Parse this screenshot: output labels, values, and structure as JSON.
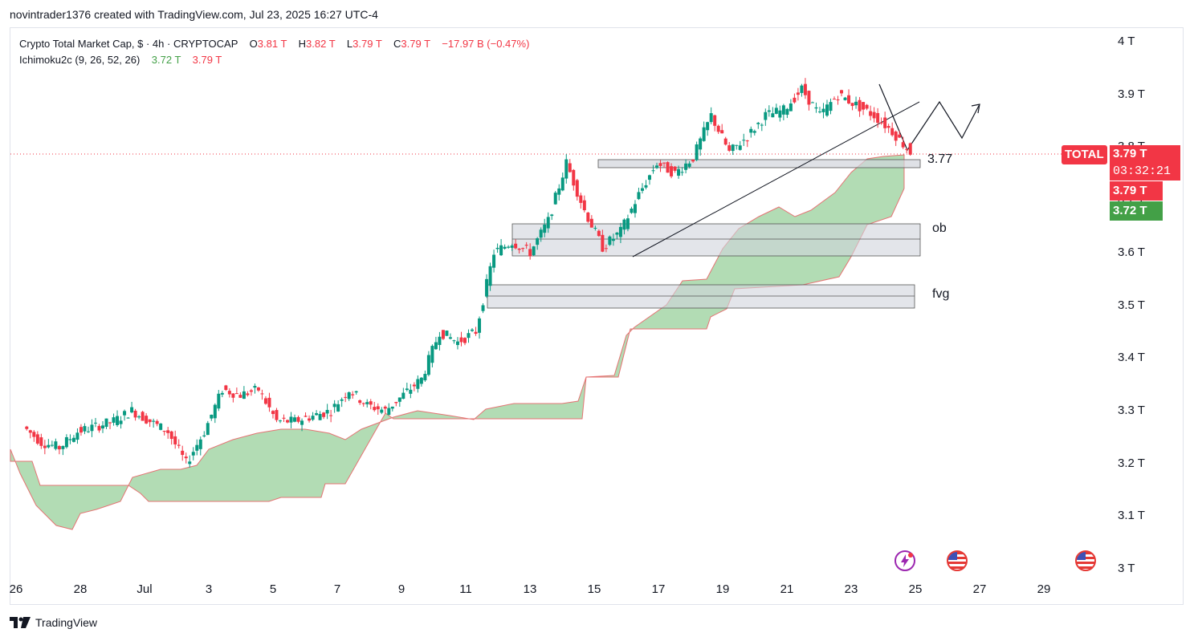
{
  "header": {
    "credit": "novintrader1376 created with TradingView.com, Jul 23, 2025 16:27 UTC-4"
  },
  "legend": {
    "symbol": "Crypto Total Market Cap, $ · 4h · CRYPTOCAP",
    "o_key": "O",
    "o_val": "3.81 T",
    "h_key": "H",
    "h_val": "3.82 T",
    "l_key": "L",
    "l_val": "3.79 T",
    "c_key": "C",
    "c_val": "3.79 T",
    "change": "−17.97 B (−0.47%)",
    "indicator": "Ichimoku2c (9, 26, 52, 26)",
    "ind_v1": "3.72 T",
    "ind_v2": "3.79 T"
  },
  "price_tags": {
    "symbol": "TOTAL",
    "last": "3.79 T",
    "countdown": "03:32:21",
    "ind_red": "3.79 T",
    "ind_green": "3.72 T"
  },
  "annotations": {
    "level": "3.77",
    "ob": "ob",
    "fvg": "fvg"
  },
  "brand": "TradingView",
  "colors": {
    "up": "#089981",
    "down": "#f23645",
    "cloud": "#a5d6a7",
    "zone": "#d1d4dc"
  },
  "icons": [
    "flash-event-icon",
    "us-flag-event-icon",
    "us-flag-event-icon"
  ],
  "chart_data": {
    "type": "line",
    "title": "Crypto Total Market Cap, $ · 4h · CRYPTOCAP",
    "ylim": [
      3.0,
      4.0
    ],
    "y_ticks": [
      "4 T",
      "3.9 T",
      "3.8 T",
      "3.7 T",
      "3.6 T",
      "3.5 T",
      "3.4 T",
      "3.3 T",
      "3.2 T",
      "3.1 T",
      "3 T"
    ],
    "x_ticks": [
      "26",
      "28",
      "Jul",
      "3",
      "5",
      "7",
      "9",
      "11",
      "13",
      "15",
      "17",
      "19",
      "21",
      "23",
      "25",
      "27",
      "29"
    ],
    "close_path": [
      [
        0,
        3.27
      ],
      [
        1,
        3.24
      ],
      [
        2,
        3.23
      ],
      [
        3,
        3.26
      ],
      [
        4,
        3.27
      ],
      [
        5,
        3.28
      ],
      [
        6,
        3.3
      ],
      [
        7,
        3.28
      ],
      [
        8,
        3.26
      ],
      [
        9,
        3.2
      ],
      [
        10,
        3.26
      ],
      [
        11,
        3.34
      ],
      [
        12,
        3.33
      ],
      [
        13,
        3.34
      ],
      [
        14,
        3.28
      ],
      [
        15,
        3.28
      ],
      [
        16,
        3.29
      ],
      [
        17,
        3.3
      ],
      [
        18,
        3.34
      ],
      [
        19,
        3.31
      ],
      [
        20,
        3.3
      ],
      [
        21,
        3.33
      ],
      [
        22,
        3.36
      ],
      [
        23,
        3.45
      ],
      [
        24,
        3.43
      ],
      [
        25,
        3.45
      ],
      [
        26,
        3.6
      ],
      [
        27,
        3.62
      ],
      [
        28,
        3.6
      ],
      [
        29,
        3.66
      ],
      [
        30,
        3.77
      ],
      [
        31,
        3.68
      ],
      [
        32,
        3.61
      ],
      [
        33,
        3.64
      ],
      [
        34,
        3.71
      ],
      [
        35,
        3.77
      ],
      [
        36,
        3.75
      ],
      [
        37,
        3.78
      ],
      [
        38,
        3.86
      ],
      [
        39,
        3.79
      ],
      [
        40,
        3.82
      ],
      [
        41,
        3.86
      ],
      [
        42,
        3.87
      ],
      [
        43,
        3.91
      ],
      [
        44,
        3.86
      ],
      [
        45,
        3.9
      ],
      [
        46,
        3.88
      ],
      [
        47,
        3.86
      ],
      [
        48,
        3.83
      ],
      [
        49,
        3.79
      ]
    ],
    "x_range": [
      -0.8,
      59.6
    ],
    "ichimoku_cloud": "green"
  }
}
